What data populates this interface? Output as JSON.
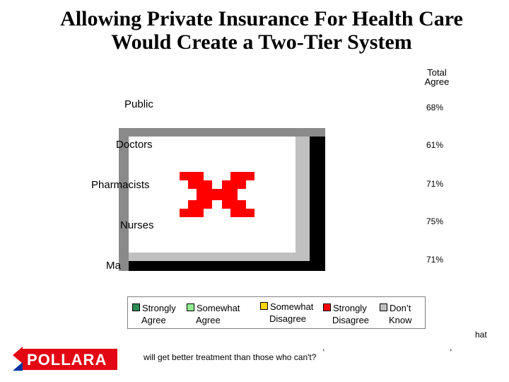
{
  "title_line1": "Allowing Private Insurance For Health Care",
  "title_line2": "Would Create a Two-Tier System",
  "column_header_line1": "Total",
  "column_header_line2": "Agree",
  "chart_data": {
    "type": "bar",
    "categories": [
      "Public",
      "Doctors",
      "Pharmacists",
      "Nurses",
      "Ma"
    ],
    "total_agree_labels": [
      "68%",
      "61%",
      "71%",
      "75%",
      "71%"
    ],
    "legend": [
      {
        "label_line1": "Strongly",
        "label_line2": "Agree",
        "color": "#2e8b57"
      },
      {
        "label_line1": "Somewhat",
        "label_line2": "Agree",
        "color": "#90ee90"
      },
      {
        "label_line1": "Somewhat",
        "label_line2": "Disagree",
        "color": "#ffd700"
      },
      {
        "label_line1": "Strongly",
        "label_line2": "Disagree",
        "color": "#ff0000"
      },
      {
        "label_line1": "Don’t",
        "label_line2": "Know",
        "color": "#c0c0c0"
      }
    ]
  },
  "footnote": "will get better treatment than those who can't?",
  "fragments": [
    "hat",
    ","
  ],
  "logo": {
    "text": "POLLARA",
    "colors": [
      "#e30613",
      "#0033a0"
    ]
  }
}
